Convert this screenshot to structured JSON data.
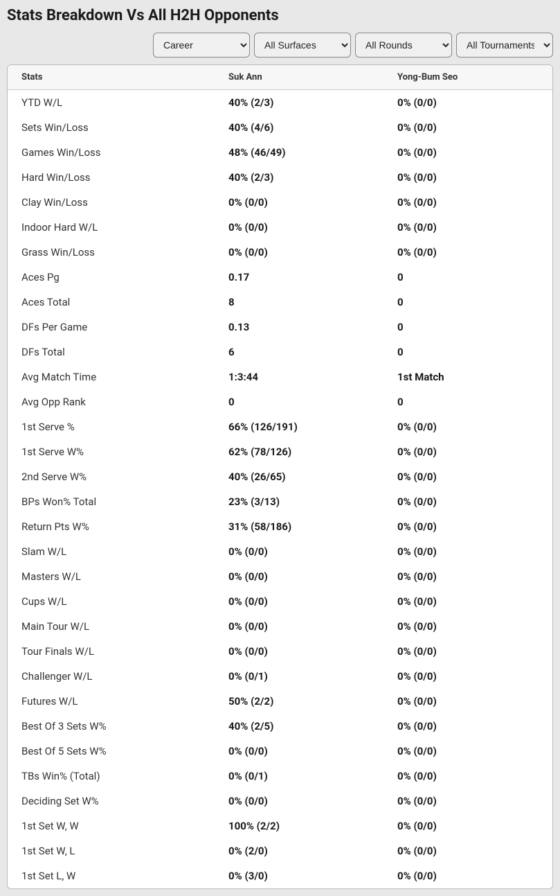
{
  "title": "Stats Breakdown Vs All H2H Opponents",
  "filters": {
    "career": "Career",
    "surfaces": "All Surfaces",
    "rounds": "All Rounds",
    "tournaments": "All Tournaments"
  },
  "columns": {
    "stats": "Stats",
    "player1": "Suk Ann",
    "player2": "Yong-Bum Seo"
  },
  "rows": [
    {
      "label": "YTD W/L",
      "p1": "40% (2/3)",
      "p2": "0% (0/0)"
    },
    {
      "label": "Sets Win/Loss",
      "p1": "40% (4/6)",
      "p2": "0% (0/0)"
    },
    {
      "label": "Games Win/Loss",
      "p1": "48% (46/49)",
      "p2": "0% (0/0)"
    },
    {
      "label": "Hard Win/Loss",
      "p1": "40% (2/3)",
      "p2": "0% (0/0)"
    },
    {
      "label": "Clay Win/Loss",
      "p1": "0% (0/0)",
      "p2": "0% (0/0)"
    },
    {
      "label": "Indoor Hard W/L",
      "p1": "0% (0/0)",
      "p2": "0% (0/0)"
    },
    {
      "label": "Grass Win/Loss",
      "p1": "0% (0/0)",
      "p2": "0% (0/0)"
    },
    {
      "label": "Aces Pg",
      "p1": "0.17",
      "p2": "0"
    },
    {
      "label": "Aces Total",
      "p1": "8",
      "p2": "0"
    },
    {
      "label": "DFs Per Game",
      "p1": "0.13",
      "p2": "0"
    },
    {
      "label": "DFs Total",
      "p1": "6",
      "p2": "0"
    },
    {
      "label": "Avg Match Time",
      "p1": "1:3:44",
      "p2": "1st Match"
    },
    {
      "label": "Avg Opp Rank",
      "p1": "0",
      "p2": "0"
    },
    {
      "label": "1st Serve %",
      "p1": "66% (126/191)",
      "p2": "0% (0/0)"
    },
    {
      "label": "1st Serve W%",
      "p1": "62% (78/126)",
      "p2": "0% (0/0)"
    },
    {
      "label": "2nd Serve W%",
      "p1": "40% (26/65)",
      "p2": "0% (0/0)"
    },
    {
      "label": "BPs Won% Total",
      "p1": "23% (3/13)",
      "p2": "0% (0/0)"
    },
    {
      "label": "Return Pts W%",
      "p1": "31% (58/186)",
      "p2": "0% (0/0)"
    },
    {
      "label": "Slam W/L",
      "p1": "0% (0/0)",
      "p2": "0% (0/0)"
    },
    {
      "label": "Masters W/L",
      "p1": "0% (0/0)",
      "p2": "0% (0/0)"
    },
    {
      "label": "Cups W/L",
      "p1": "0% (0/0)",
      "p2": "0% (0/0)"
    },
    {
      "label": "Main Tour W/L",
      "p1": "0% (0/0)",
      "p2": "0% (0/0)"
    },
    {
      "label": "Tour Finals W/L",
      "p1": "0% (0/0)",
      "p2": "0% (0/0)"
    },
    {
      "label": "Challenger W/L",
      "p1": "0% (0/1)",
      "p2": "0% (0/0)"
    },
    {
      "label": "Futures W/L",
      "p1": "50% (2/2)",
      "p2": "0% (0/0)"
    },
    {
      "label": "Best Of 3 Sets W%",
      "p1": "40% (2/5)",
      "p2": "0% (0/0)"
    },
    {
      "label": "Best Of 5 Sets W%",
      "p1": "0% (0/0)",
      "p2": "0% (0/0)"
    },
    {
      "label": "TBs Win% (Total)",
      "p1": "0% (0/1)",
      "p2": "0% (0/0)"
    },
    {
      "label": "Deciding Set W%",
      "p1": "0% (0/0)",
      "p2": "0% (0/0)"
    },
    {
      "label": "1st Set W, W",
      "p1": "100% (2/2)",
      "p2": "0% (0/0)"
    },
    {
      "label": "1st Set W, L",
      "p1": "0% (2/0)",
      "p2": "0% (0/0)"
    },
    {
      "label": "1st Set L, W",
      "p1": "0% (3/0)",
      "p2": "0% (0/0)"
    }
  ]
}
